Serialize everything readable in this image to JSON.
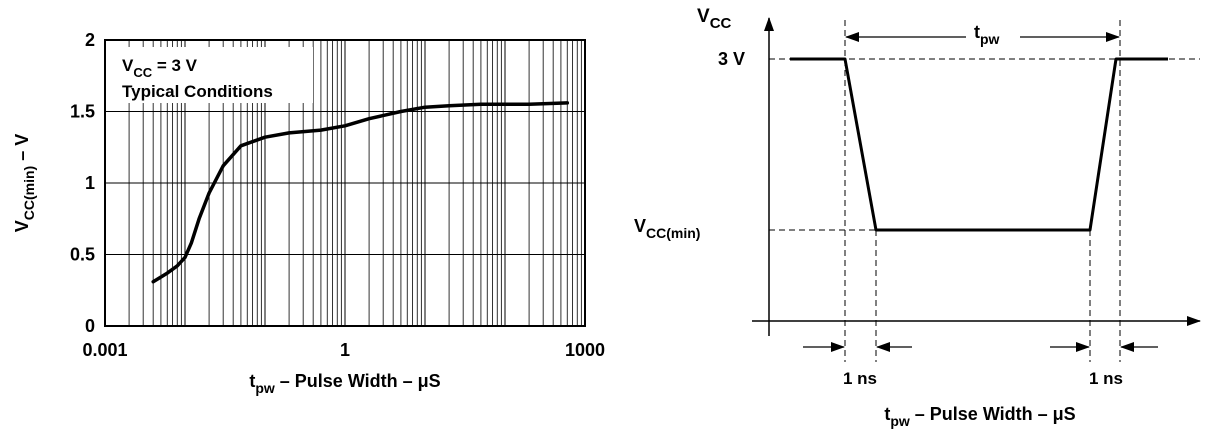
{
  "chart_data": [
    {
      "type": "line",
      "x_scale": "log",
      "xlim": [
        0.001,
        1000
      ],
      "ylim": [
        0,
        2
      ],
      "x_ticks": [
        "0.001",
        "1",
        "1000"
      ],
      "y_ticks": [
        "0",
        "0.5",
        "1",
        "1.5",
        "2"
      ],
      "grid": true,
      "xlabel": {
        "t": "t",
        "sub": "pw",
        "rest": " – Pulse Width – μS"
      },
      "ylabel": {
        "v": "V",
        "sub": "CC(min)",
        "rest": " – V"
      },
      "annotation": {
        "line1": {
          "v": "V",
          "sub": "CC",
          "rest": " = 3 V"
        },
        "line2": "Typical Conditions"
      },
      "series": [
        {
          "x": [
            0.004,
            0.006,
            0.008,
            0.01,
            0.012,
            0.015,
            0.02,
            0.03,
            0.05,
            0.1,
            0.2,
            0.5,
            1,
            2,
            5,
            10,
            20,
            50,
            100,
            200,
            600
          ],
          "y": [
            0.31,
            0.37,
            0.42,
            0.48,
            0.58,
            0.75,
            0.93,
            1.12,
            1.26,
            1.32,
            1.35,
            1.37,
            1.4,
            1.45,
            1.5,
            1.53,
            1.54,
            1.55,
            1.55,
            1.55,
            1.56
          ]
        }
      ]
    },
    {
      "type": "timing-diagram",
      "y_axis_label": {
        "v": "V",
        "sub": "CC"
      },
      "level_high": "3 V",
      "level_low": {
        "v": "V",
        "sub": "CC(min)"
      },
      "pulse_width_label": {
        "t": "t",
        "sub": "pw"
      },
      "edge_label_left": "1 ns",
      "edge_label_right": "1 ns",
      "xlabel": {
        "t": "t",
        "sub": "pw",
        "rest": " – Pulse Width – μS"
      }
    }
  ]
}
